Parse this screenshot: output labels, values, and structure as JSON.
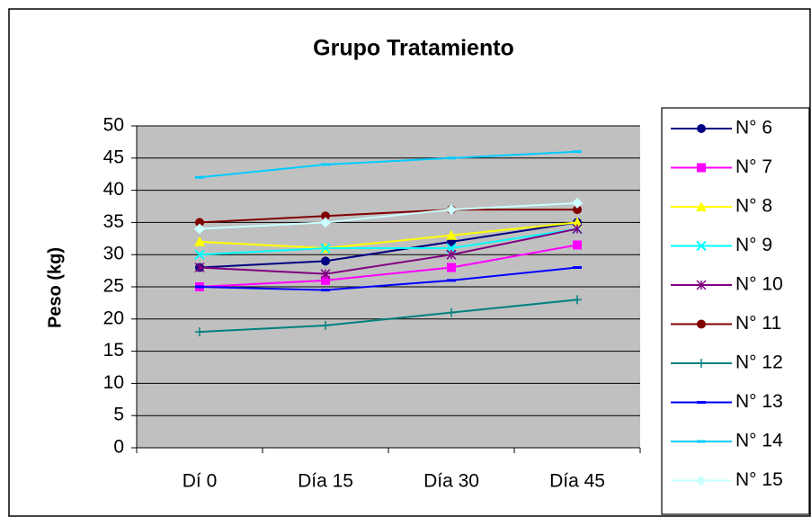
{
  "chart_data": {
    "type": "line",
    "title": "Grupo Tratamiento",
    "y_label": "Peso (kg)",
    "categories": [
      "Dí 0",
      "Día 15",
      "Día 30",
      "Día 45"
    ],
    "series": [
      {
        "name": "N° 6",
        "color": "#000080",
        "marker": "circle",
        "values": [
          28,
          29,
          32,
          35
        ]
      },
      {
        "name": "N° 7",
        "color": "#ff00ff",
        "marker": "square",
        "values": [
          25,
          26,
          28,
          31.5
        ]
      },
      {
        "name": "N° 8",
        "color": "#ffff00",
        "marker": "triangle",
        "values": [
          32,
          31,
          33,
          35
        ]
      },
      {
        "name": "N° 9",
        "color": "#00ffff",
        "marker": "x",
        "values": [
          30,
          31,
          31,
          34
        ]
      },
      {
        "name": "N° 10",
        "color": "#800080",
        "marker": "star",
        "values": [
          28,
          27,
          30,
          34
        ]
      },
      {
        "name": "N° 11",
        "color": "#800000",
        "marker": "circle",
        "values": [
          35,
          36,
          37,
          37
        ]
      },
      {
        "name": "N° 12",
        "color": "#008080",
        "marker": "plus",
        "values": [
          18,
          19,
          21,
          23
        ]
      },
      {
        "name": "N° 13",
        "color": "#0000ff",
        "marker": "dash",
        "values": [
          25,
          24.5,
          26,
          28
        ]
      },
      {
        "name": "N° 14",
        "color": "#00ccff",
        "marker": "dash",
        "values": [
          42,
          44,
          45,
          46
        ]
      },
      {
        "name": "N° 15",
        "color": "#ccffff",
        "marker": "diamond",
        "values": [
          34,
          35,
          37,
          38
        ]
      }
    ],
    "ylim": [
      0,
      50
    ],
    "yticks": [
      0,
      5,
      10,
      15,
      20,
      25,
      30,
      35,
      40,
      45,
      50
    ],
    "grid": true
  }
}
